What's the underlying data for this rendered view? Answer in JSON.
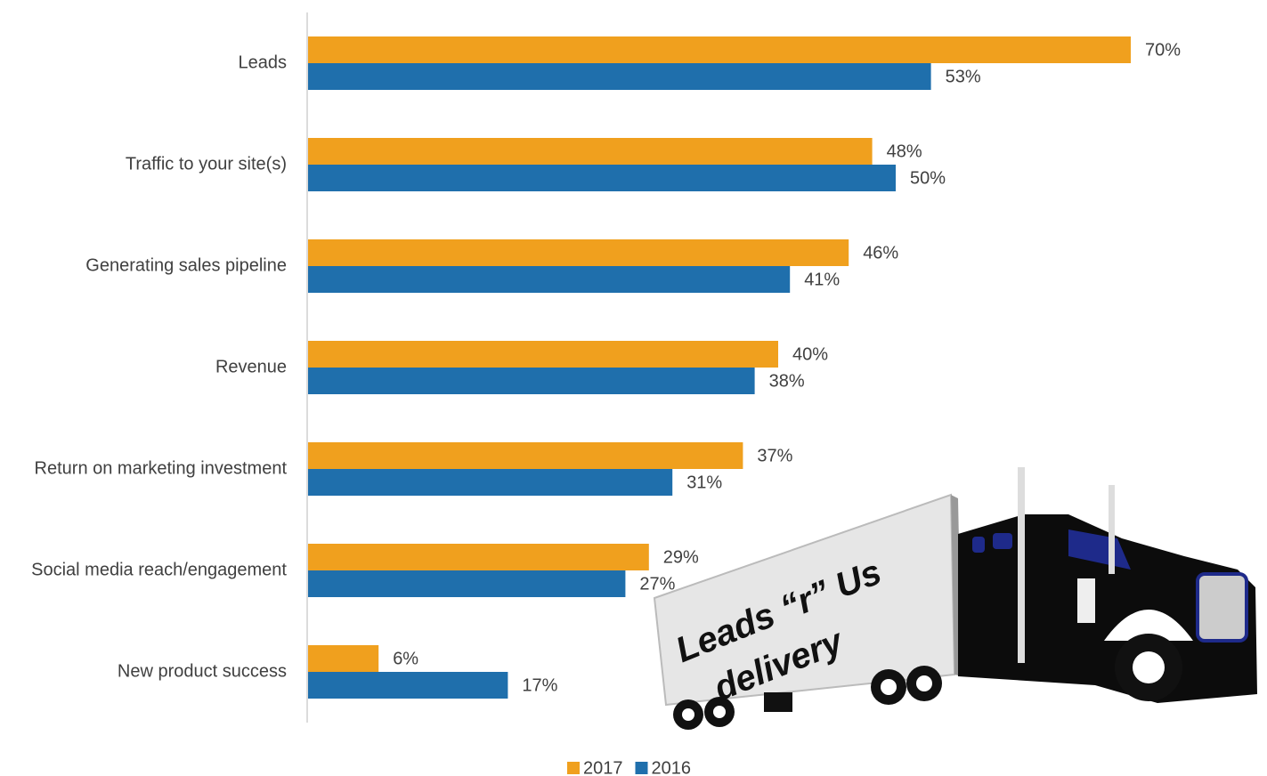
{
  "chart_data": {
    "type": "bar",
    "orientation": "horizontal",
    "categories": [
      "Leads",
      "Traffic to your site(s)",
      "Generating sales pipeline",
      "Revenue",
      "Return on marketing investment",
      "Social media reach/engagement",
      "New product success"
    ],
    "series": [
      {
        "name": "2017",
        "color": "#f0a01e",
        "values": [
          70,
          48,
          46,
          40,
          37,
          29,
          6
        ],
        "value_labels": [
          "70%",
          "48%",
          "46%",
          "40%",
          "37%",
          "29%",
          "6%"
        ]
      },
      {
        "name": "2016",
        "color": "#1f6fac",
        "values": [
          53,
          50,
          41,
          38,
          31,
          27,
          17
        ],
        "value_labels": [
          "53%",
          "50%",
          "41%",
          "38%",
          "31%",
          "27%",
          "17%"
        ]
      }
    ],
    "xlim": [
      0,
      70
    ],
    "legend": "bottom",
    "annotation": [
      "Leads “r” Us",
      "delivery"
    ]
  }
}
